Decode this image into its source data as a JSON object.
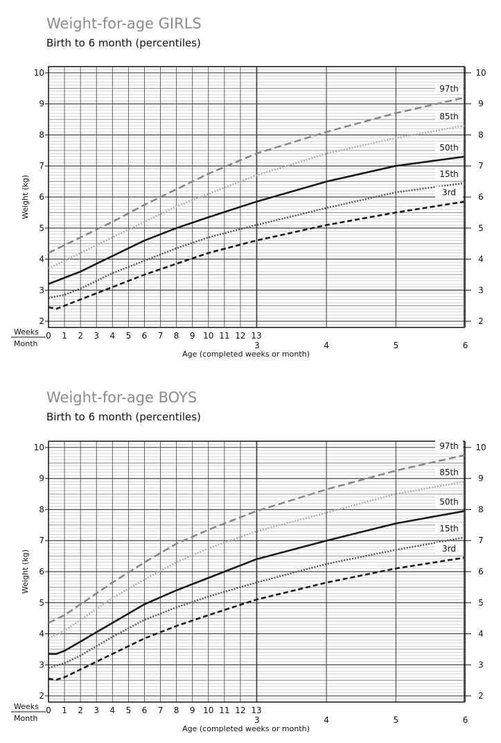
{
  "chart_data": [
    {
      "type": "line",
      "title": "Weight-for-age GIRLS",
      "subtitle": "Birth to 6 month (percentiles)",
      "ylabel": "Weight (kg)",
      "xlabel": "Age (completed weeks or month)",
      "weeks_label": "Weeks",
      "month_label": "Month",
      "ylim": [
        1.8,
        10.2
      ],
      "xlim_weeks": [
        0,
        26
      ],
      "y_ticks": [
        "2",
        "3",
        "4",
        "5",
        "6",
        "7",
        "8",
        "9",
        "10"
      ],
      "week_ticks": [
        "0",
        "1",
        "2",
        "3",
        "4",
        "5",
        "6",
        "7",
        "8",
        "9",
        "10",
        "11",
        "12",
        "13"
      ],
      "month_ticks": [
        "3",
        "4",
        "5",
        "6"
      ],
      "grid": true,
      "series": [
        {
          "name": "97th",
          "color": "#888888",
          "dash": "10,5",
          "x": [
            0,
            1,
            2,
            3,
            4,
            6,
            8,
            10,
            13,
            17.4,
            21.7,
            26
          ],
          "y": [
            4.2,
            4.45,
            4.7,
            4.95,
            5.2,
            5.75,
            6.25,
            6.75,
            7.4,
            8.1,
            8.7,
            9.2
          ]
        },
        {
          "name": "85th",
          "color": "#b0b0b0",
          "dash": "2,2",
          "x": [
            0,
            1,
            2,
            3,
            4,
            6,
            8,
            10,
            13,
            17.4,
            21.7,
            26
          ],
          "y": [
            3.7,
            3.95,
            4.2,
            4.45,
            4.7,
            5.2,
            5.7,
            6.1,
            6.7,
            7.4,
            7.9,
            8.3
          ]
        },
        {
          "name": "50th",
          "color": "#1a1a1a",
          "dash": "",
          "x": [
            0,
            1,
            2,
            3,
            4,
            6,
            8,
            10,
            13,
            17.4,
            21.7,
            26
          ],
          "y": [
            3.2,
            3.4,
            3.6,
            3.85,
            4.1,
            4.6,
            5.0,
            5.35,
            5.85,
            6.5,
            7.0,
            7.3
          ]
        },
        {
          "name": "15th",
          "color": "#555555",
          "dash": "2,2",
          "x": [
            0,
            1,
            2,
            3,
            4,
            6,
            8,
            10,
            13,
            17.4,
            21.7,
            26
          ],
          "y": [
            2.75,
            2.85,
            3.05,
            3.3,
            3.55,
            3.95,
            4.35,
            4.7,
            5.1,
            5.65,
            6.15,
            6.45
          ]
        },
        {
          "name": "3rd",
          "color": "#1a1a1a",
          "dash": "7,4",
          "x": [
            0,
            0.5,
            1,
            2,
            3,
            4,
            6,
            8,
            10,
            13,
            17.4,
            21.7,
            26
          ],
          "y": [
            2.45,
            2.4,
            2.5,
            2.7,
            2.9,
            3.1,
            3.5,
            3.85,
            4.2,
            4.6,
            5.1,
            5.5,
            5.85
          ]
        }
      ]
    },
    {
      "type": "line",
      "title": "Weight-for-age BOYS",
      "subtitle": "Birth to 6 month (percentiles)",
      "ylabel": "Weight (kg)",
      "xlabel": "Age (completed weeks or month)",
      "weeks_label": "Weeks",
      "month_label": "Month",
      "ylim": [
        1.8,
        10.2
      ],
      "xlim_weeks": [
        0,
        26
      ],
      "y_ticks": [
        "2",
        "3",
        "4",
        "5",
        "6",
        "7",
        "8",
        "9",
        "10"
      ],
      "week_ticks": [
        "0",
        "1",
        "2",
        "3",
        "4",
        "5",
        "6",
        "7",
        "8",
        "9",
        "10",
        "11",
        "12",
        "13"
      ],
      "month_ticks": [
        "3",
        "4",
        "5",
        "6"
      ],
      "grid": true,
      "series": [
        {
          "name": "97th",
          "color": "#888888",
          "dash": "10,5",
          "x": [
            0,
            1,
            2,
            3,
            4,
            6,
            8,
            10,
            13,
            17.4,
            21.7,
            26
          ],
          "y": [
            4.35,
            4.6,
            4.95,
            5.3,
            5.65,
            6.3,
            6.9,
            7.35,
            7.95,
            8.65,
            9.25,
            9.75
          ]
        },
        {
          "name": "85th",
          "color": "#b0b0b0",
          "dash": "2,2",
          "x": [
            0,
            1,
            2,
            3,
            4,
            6,
            8,
            10,
            13,
            17.4,
            21.7,
            26
          ],
          "y": [
            3.85,
            4.1,
            4.45,
            4.8,
            5.15,
            5.75,
            6.3,
            6.75,
            7.3,
            7.9,
            8.5,
            8.9
          ]
        },
        {
          "name": "50th",
          "color": "#1a1a1a",
          "dash": "",
          "x": [
            0,
            0.5,
            1,
            2,
            3,
            4,
            6,
            8,
            10,
            13,
            17.4,
            21.7,
            26
          ],
          "y": [
            3.35,
            3.35,
            3.45,
            3.75,
            4.05,
            4.35,
            4.95,
            5.4,
            5.8,
            6.4,
            7.0,
            7.55,
            7.95
          ]
        },
        {
          "name": "15th",
          "color": "#555555",
          "dash": "2,2",
          "x": [
            0,
            1,
            2,
            3,
            4,
            6,
            8,
            10,
            13,
            17.4,
            21.7,
            26
          ],
          "y": [
            2.9,
            3.05,
            3.3,
            3.6,
            3.9,
            4.45,
            4.85,
            5.2,
            5.65,
            6.25,
            6.7,
            7.1
          ]
        },
        {
          "name": "3rd",
          "color": "#1a1a1a",
          "dash": "7,4",
          "x": [
            0,
            0.5,
            1,
            2,
            3,
            4,
            6,
            8,
            10,
            13,
            17.4,
            21.7,
            26
          ],
          "y": [
            2.55,
            2.52,
            2.6,
            2.85,
            3.1,
            3.35,
            3.85,
            4.25,
            4.6,
            5.1,
            5.65,
            6.1,
            6.45
          ]
        }
      ]
    }
  ]
}
